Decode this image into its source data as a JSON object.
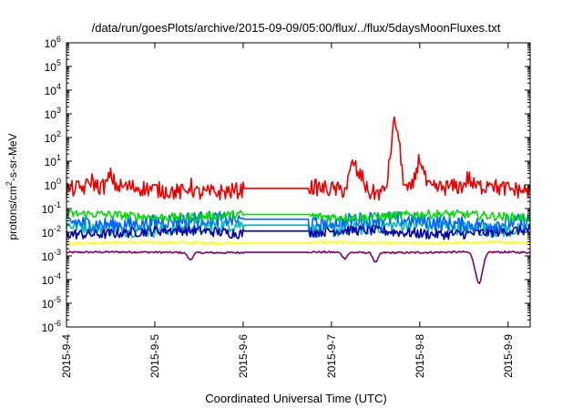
{
  "chart_data": {
    "type": "line",
    "title": "/data/run/goesPlots/archive/2015-09-09/05:00/flux/../flux/5daysMoonFluxes.txt",
    "xlabel": "Coordinated Universal Time (UTC)",
    "ylabel": "protons/cm²-s-sr-MeV",
    "ylabel_parts": [
      "protons/cm",
      "2",
      "-s-sr-MeV"
    ],
    "yscale": "log",
    "ylim_exp": [
      -6,
      6
    ],
    "yticks": [
      {
        "base": "10",
        "exp": "-6"
      },
      {
        "base": "10",
        "exp": "-5"
      },
      {
        "base": "10",
        "exp": "-4"
      },
      {
        "base": "10",
        "exp": "-3"
      },
      {
        "base": "10",
        "exp": "-2"
      },
      {
        "base": "10",
        "exp": "-1"
      },
      {
        "base": "10",
        "exp": "0"
      },
      {
        "base": "10",
        "exp": "1"
      },
      {
        "base": "10",
        "exp": "2"
      },
      {
        "base": "10",
        "exp": "3"
      },
      {
        "base": "10",
        "exp": "4"
      },
      {
        "base": "10",
        "exp": "5"
      },
      {
        "base": "10",
        "exp": "6"
      }
    ],
    "xlim_days": [
      0,
      5.25
    ],
    "xticks": [
      {
        "day": 0,
        "label": "2015-9-4"
      },
      {
        "day": 1,
        "label": "2015-9-5"
      },
      {
        "day": 2,
        "label": "2015-9-6"
      },
      {
        "day": 3,
        "label": "2015-9-7"
      },
      {
        "day": 4,
        "label": "2015-9-8"
      },
      {
        "day": 5,
        "label": "2015-9-9"
      }
    ],
    "gap_days": [
      2.0,
      2.75
    ],
    "grid": false,
    "legend": "none",
    "series": [
      {
        "color": "#ee0000",
        "base_exp": -0.2,
        "noise": 0.35,
        "flat_exp": -0.15,
        "features": [
          [
            0.28,
            0.3
          ],
          [
            0.5,
            0.45
          ],
          [
            1.4,
            0.3
          ],
          [
            3.25,
            1.2
          ],
          [
            3.35,
            0.6
          ],
          [
            3.7,
            1.9
          ],
          [
            3.75,
            1.6
          ],
          [
            4.0,
            1.3
          ],
          [
            4.55,
            0.35
          ],
          [
            4.8,
            0.3
          ]
        ]
      },
      {
        "color": "#00dd00",
        "base_exp": -1.3,
        "noise": 0.18,
        "flat_exp": -1.25,
        "features": []
      },
      {
        "color": "#00bbbb",
        "base_exp": -1.8,
        "noise": 0.3,
        "flat_exp": -1.7,
        "features": []
      },
      {
        "color": "#0066ff",
        "base_exp": -1.55,
        "noise": 0.32,
        "flat_exp": -1.45,
        "features": []
      },
      {
        "color": "#0000aa",
        "base_exp": -2.0,
        "noise": 0.22,
        "flat_exp": -1.95,
        "features": []
      },
      {
        "color": "#ffff00",
        "base_exp": -2.45,
        "noise": 0.05,
        "flat_exp": -2.45,
        "features": []
      },
      {
        "color": "#880066",
        "base_exp": -2.85,
        "noise": 0.04,
        "flat_exp": -2.85,
        "features": [
          [
            1.4,
            -0.3
          ],
          [
            3.15,
            -0.25
          ],
          [
            3.5,
            -0.4
          ],
          [
            4.67,
            -1.3
          ]
        ]
      }
    ]
  }
}
